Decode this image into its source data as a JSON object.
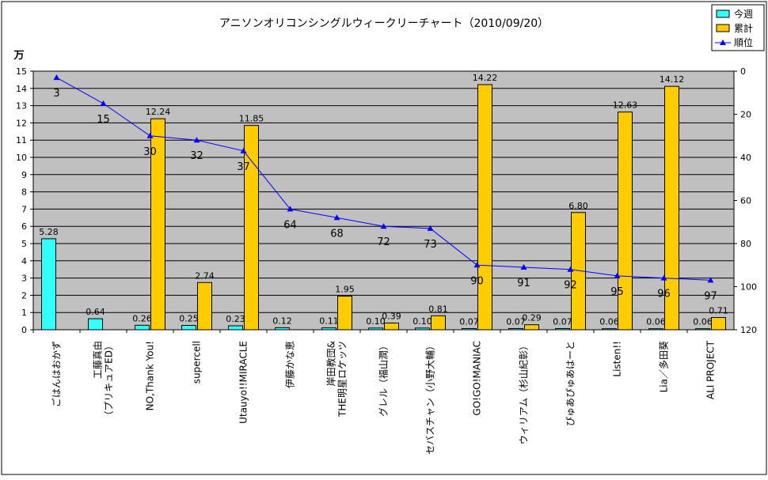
{
  "chart_data": {
    "type": "bar",
    "title": "アニソンオリコンシングルウィークリーチャート（2010/09/20）",
    "ylabel": "万",
    "ylim": [
      0,
      15
    ],
    "y_ticks": [
      "0",
      "1",
      "2",
      "3",
      "4",
      "5",
      "6",
      "7",
      "8",
      "9",
      "10",
      "11",
      "12",
      "13",
      "14",
      "15"
    ],
    "y2lim": [
      0,
      120
    ],
    "y2_inverted": true,
    "y2_ticks": [
      "0",
      "20",
      "40",
      "60",
      "80",
      "100",
      "120"
    ],
    "grid": true,
    "legend_position": "top-right",
    "categories": [
      "ごはんはおかず",
      "工藤真由\n（プリキュアED）",
      "NO,Thank You!",
      "supercell",
      "Utauyo!!MIRACLE",
      "伊藤かな恵",
      "岸田教団&\nTHE明星ロケッツ",
      "グレル（福山潤）",
      "セバスチャン（小野大輔）",
      "GO!GO!MANIAC",
      "ウィリアム（杉山紀彰）",
      "ぴゅあぴゅあはーと",
      "Listen!!",
      "Lia／多田葵",
      "ALI PROJECT"
    ],
    "series": [
      {
        "name": "今週",
        "kind": "bar",
        "color": "#33ffff",
        "values": [
          5.28,
          0.64,
          0.26,
          0.25,
          0.23,
          0.12,
          0.11,
          0.1,
          0.1,
          0.07,
          0.07,
          0.07,
          0.06,
          0.06,
          0.06
        ],
        "labels": [
          "5.28",
          "0.64",
          "0.26",
          "0.25",
          "0.23",
          "0.12",
          "0.11",
          "0.10",
          "0.10",
          "0.07",
          "0.07",
          "0.07",
          "0.06",
          "0.06",
          "0.06"
        ]
      },
      {
        "name": "累計",
        "kind": "bar",
        "color": "#ffcc00",
        "values": [
          null,
          null,
          12.24,
          2.74,
          11.85,
          null,
          1.95,
          0.39,
          0.81,
          14.22,
          0.29,
          6.8,
          12.63,
          14.12,
          0.71
        ],
        "labels": [
          "",
          "",
          "12.24",
          "2.74",
          "11.85",
          "",
          "1.95",
          "0.39",
          "0.81",
          "14.22",
          "0.29",
          "6.80",
          "12.63",
          "14.12",
          "0.71"
        ]
      },
      {
        "name": "順位",
        "kind": "line",
        "axis": "right",
        "color": "#0000ff",
        "values": [
          3,
          15,
          30,
          32,
          37,
          64,
          68,
          72,
          73,
          90,
          91,
          92,
          95,
          96,
          97
        ],
        "labels": [
          "3",
          "15",
          "30",
          "32",
          "37",
          "64",
          "68",
          "72",
          "73",
          "90",
          "91",
          "92",
          "95",
          "96",
          "97"
        ]
      }
    ]
  }
}
